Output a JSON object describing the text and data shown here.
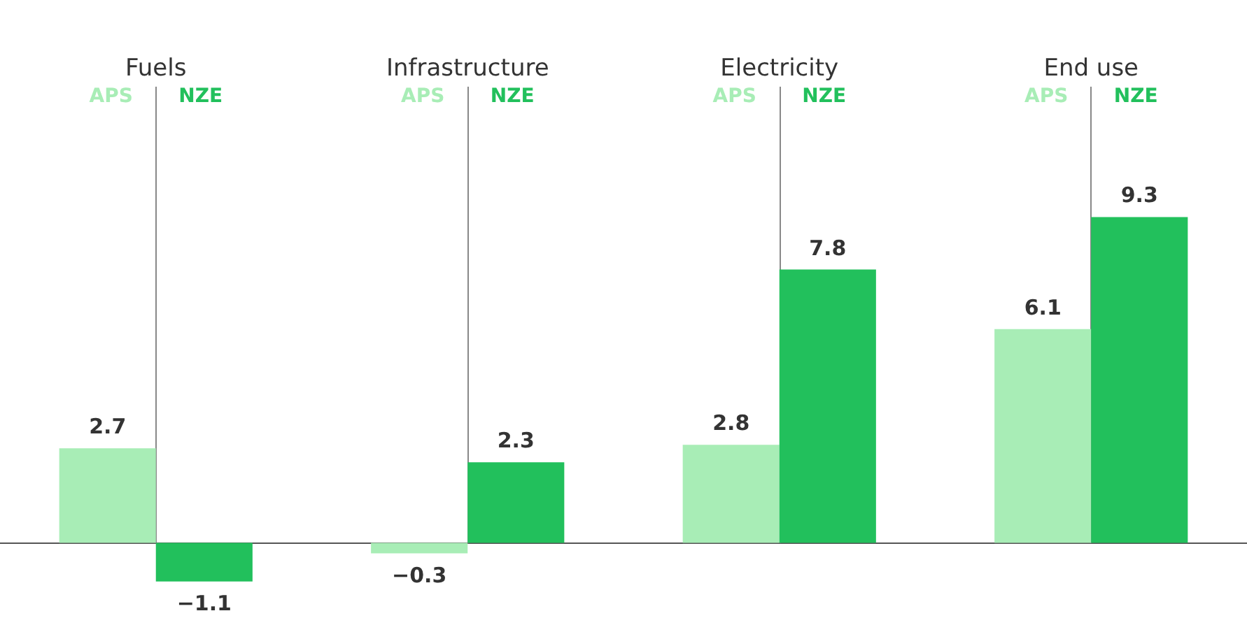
{
  "chart_data": {
    "type": "bar",
    "categories": [
      "Fuels",
      "Infrastructure",
      "Electricity",
      "End use"
    ],
    "series": [
      {
        "name": "APS",
        "color": "#a8edb6",
        "values": [
          2.7,
          -0.3,
          2.8,
          6.1
        ]
      },
      {
        "name": "NZE",
        "color": "#22c05c",
        "values": [
          -1.1,
          2.3,
          7.8,
          9.3
        ]
      }
    ],
    "data_labels": true,
    "grid": "x"
  }
}
